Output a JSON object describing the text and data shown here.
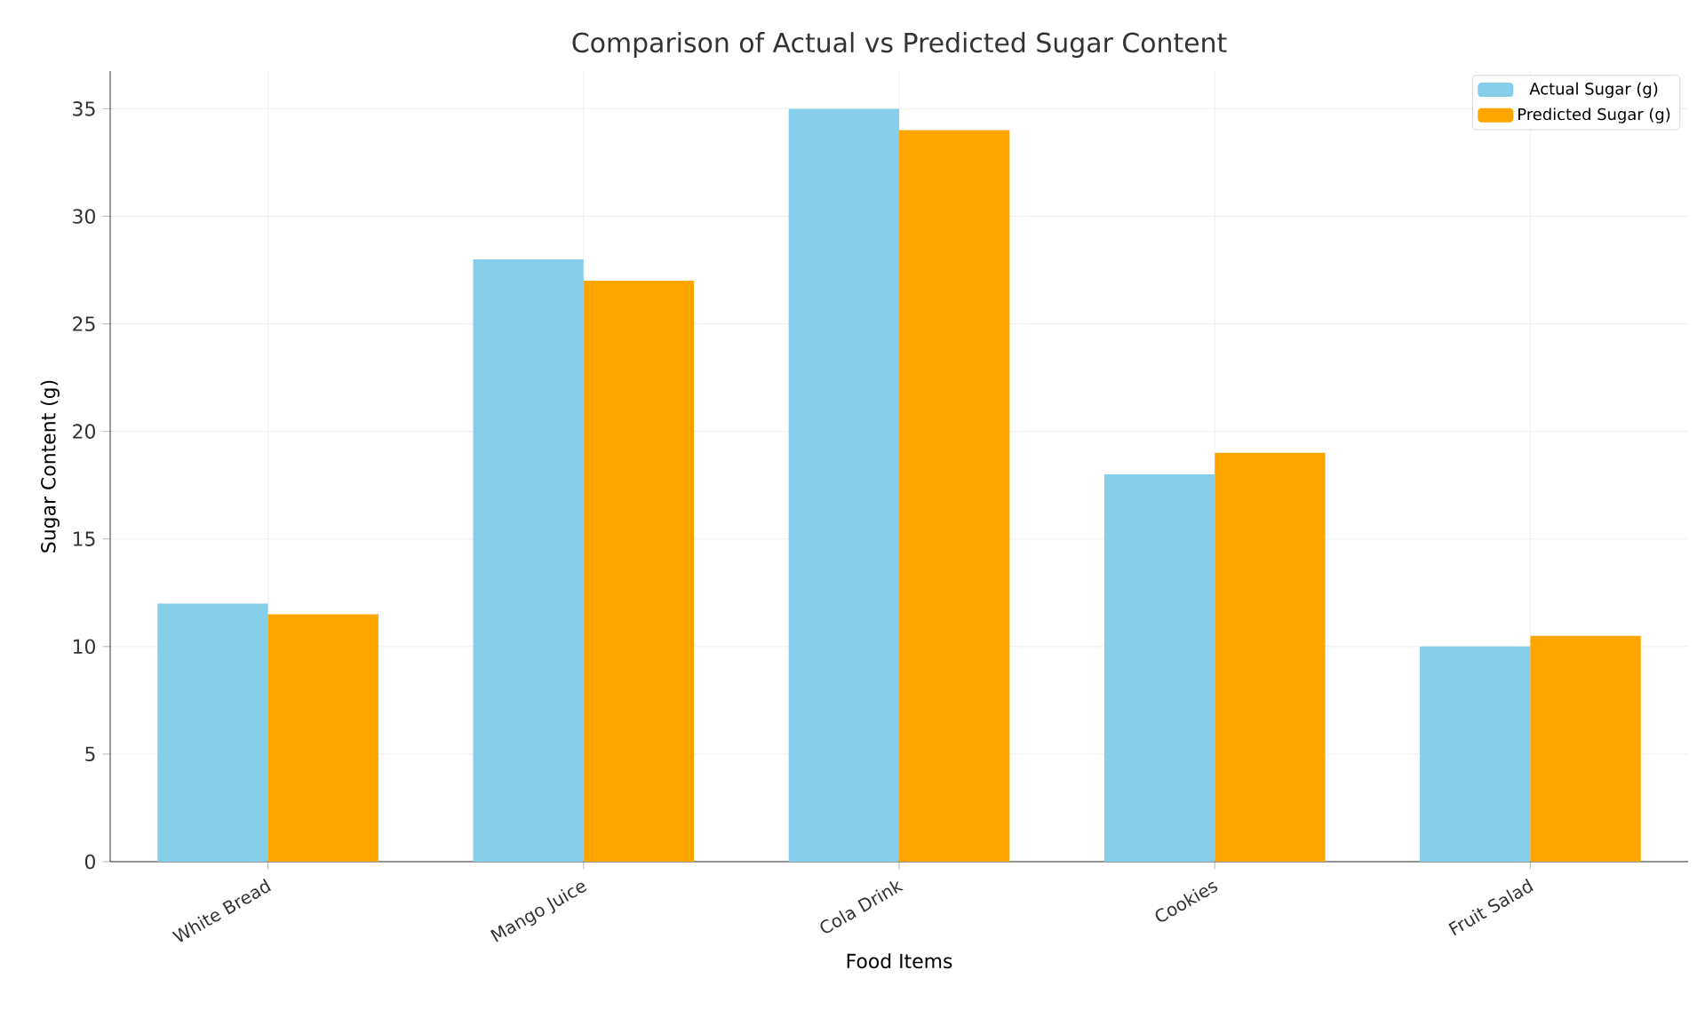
{
  "chart_data": {
    "type": "bar",
    "title": "Comparison of Actual vs Predicted Sugar Content",
    "xlabel": "Food Items",
    "ylabel": "Sugar Content (g)",
    "categories": [
      "White Bread",
      "Mango Juice",
      "Cola Drink",
      "Cookies",
      "Fruit Salad"
    ],
    "series": [
      {
        "name": "Actual Sugar (g)",
        "color": "#87ceeb",
        "values": [
          12,
          28,
          35,
          18,
          10
        ]
      },
      {
        "name": "Predicted Sugar (g)",
        "color": "#ffa500",
        "values": [
          11.5,
          27,
          34,
          19,
          10.5
        ]
      }
    ],
    "ylim": [
      0,
      36.75
    ],
    "yticks": [
      0,
      5,
      10,
      15,
      20,
      25,
      30,
      35
    ],
    "grid": true,
    "legend": "top right"
  }
}
